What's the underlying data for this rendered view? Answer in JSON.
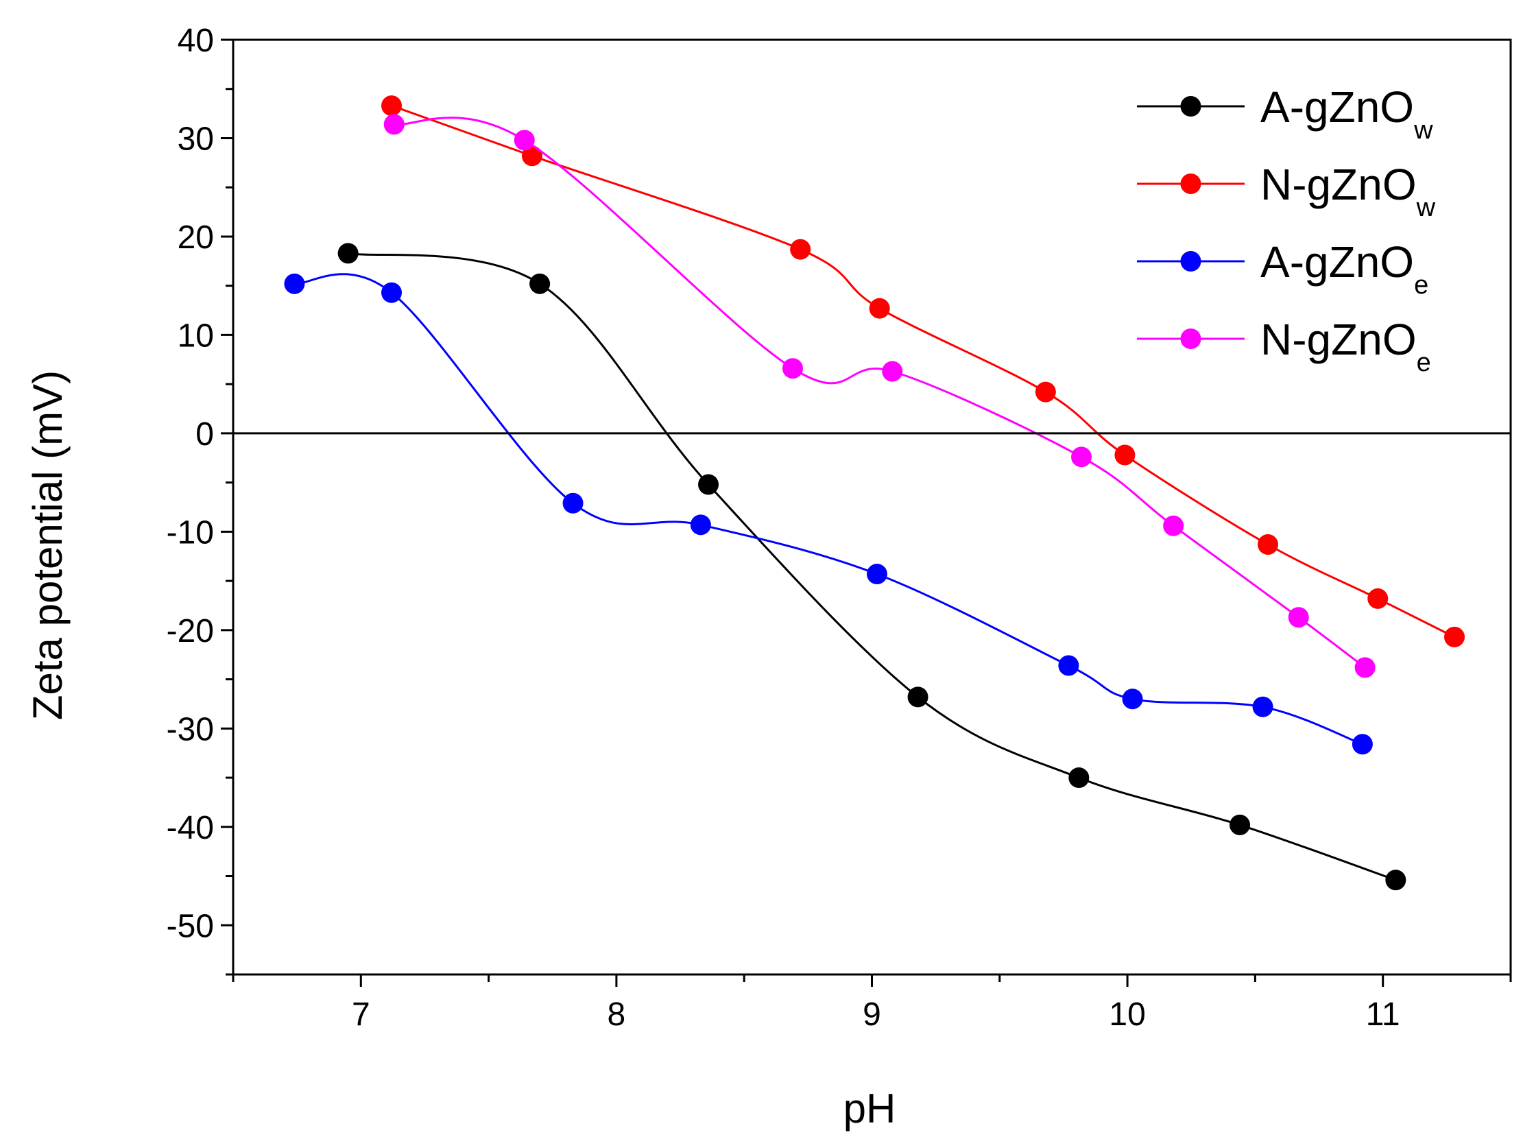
{
  "chart_data": {
    "type": "line",
    "title": "",
    "xlabel": "pH",
    "ylabel": "Zeta potential (mV)",
    "xlim": [
      6.5,
      11.5
    ],
    "ylim": [
      -55,
      40
    ],
    "xticks": [
      7,
      8,
      9,
      10,
      11
    ],
    "yticks": [
      40,
      30,
      20,
      10,
      0,
      -10,
      -20,
      -30,
      -40,
      -50
    ],
    "zero_line": true,
    "grid": false,
    "legend_position": "top-right",
    "series": [
      {
        "name": "A-gZnO",
        "subscript": "w",
        "color": "#000000",
        "x": [
          6.95,
          7.7,
          8.36,
          9.18,
          9.81,
          10.44,
          11.05
        ],
        "y": [
          18.3,
          15.2,
          -5.2,
          -26.8,
          -35.0,
          -39.8,
          -45.4
        ]
      },
      {
        "name": "N-gZnO",
        "subscript": "w",
        "color": "#ff0000",
        "x": [
          7.12,
          7.67,
          8.72,
          9.03,
          9.68,
          9.99,
          10.55,
          10.98,
          11.28
        ],
        "y": [
          33.3,
          28.2,
          18.7,
          12.7,
          4.2,
          -2.2,
          -11.3,
          -16.8,
          -20.7
        ]
      },
      {
        "name": "A-gZnO",
        "subscript": "e",
        "color": "#0000ff",
        "x": [
          6.74,
          7.12,
          7.83,
          8.33,
          9.02,
          9.77,
          10.02,
          10.53,
          10.92
        ],
        "y": [
          15.2,
          14.3,
          -7.1,
          -9.3,
          -14.3,
          -23.6,
          -27.0,
          -27.8,
          -31.6
        ]
      },
      {
        "name": "N-gZnO",
        "subscript": "e",
        "color": "#ff00ff",
        "x": [
          7.13,
          7.64,
          8.69,
          9.08,
          9.82,
          10.18,
          10.67,
          10.93
        ],
        "y": [
          31.4,
          29.8,
          6.6,
          6.3,
          -2.4,
          -9.4,
          -18.7,
          -23.8
        ]
      }
    ]
  }
}
